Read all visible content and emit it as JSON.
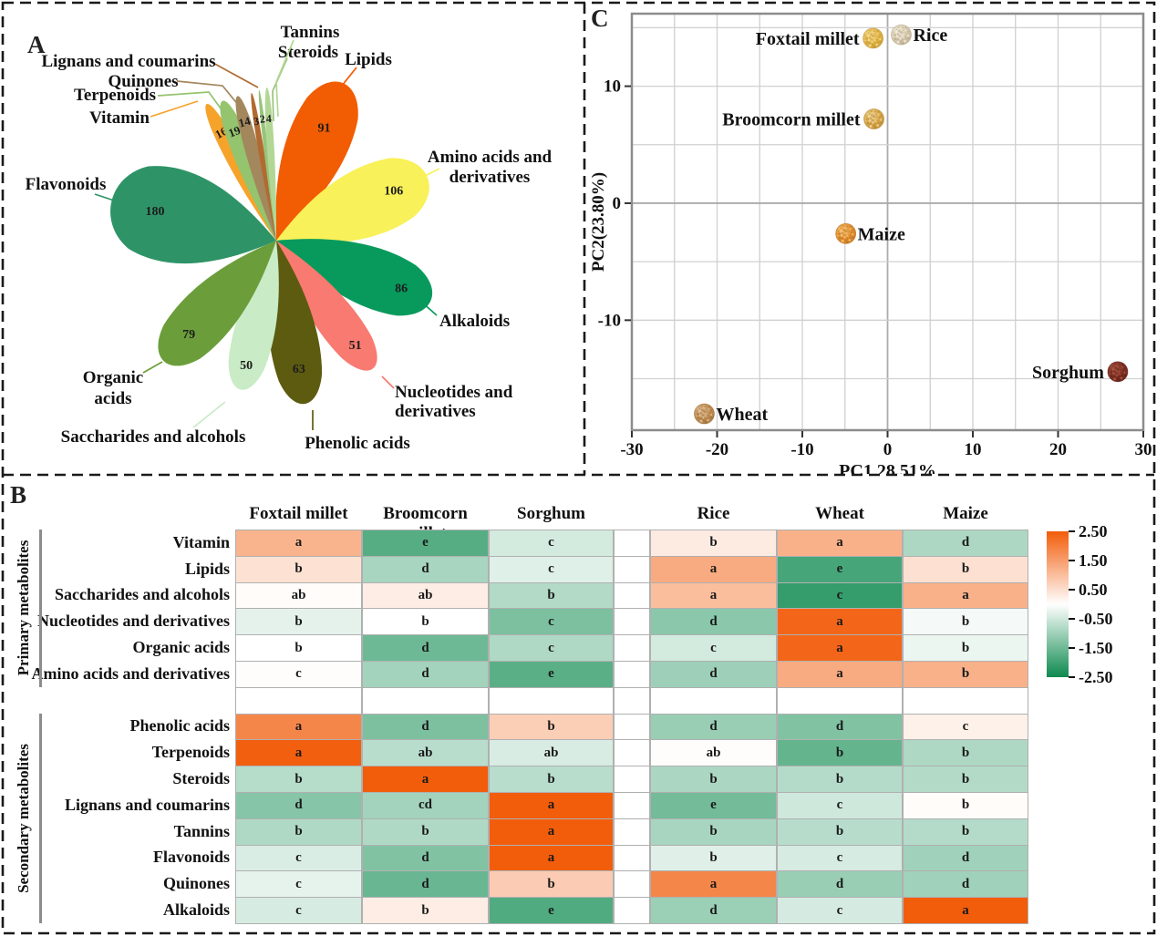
{
  "figure": {
    "panel_a_label": "A",
    "panel_b_label": "B",
    "panel_c_label": "C"
  },
  "chart_data": [
    {
      "type": "bar",
      "panel": "A",
      "title": "Metabolite class counts (flower/petal plot)",
      "petals": [
        {
          "name": "Lipids",
          "value": 91,
          "color": "#F25C02"
        },
        {
          "name": "Amino acids and derivatives",
          "value": 106,
          "color": "#F9F159"
        },
        {
          "name": "Alkaloids",
          "value": 86,
          "color": "#089A5D"
        },
        {
          "name": "Nucleotides and derivatives",
          "value": 51,
          "color": "#F87A70"
        },
        {
          "name": "Phenolic acids",
          "value": 63,
          "color": "#5D5B10"
        },
        {
          "name": "Saccharides and alcohols",
          "value": 50,
          "color": "#C9EBC6"
        },
        {
          "name": "Organic acids",
          "value": 79,
          "color": "#6B9E3B"
        },
        {
          "name": "Flavonoids",
          "value": 180,
          "color": "#2E9467"
        },
        {
          "name": "Vitamin",
          "value": 16,
          "color": "#F6A32B"
        },
        {
          "name": "Terpenoids",
          "value": 19,
          "color": "#94C46E"
        },
        {
          "name": "Quinones",
          "value": 14,
          "color": "#A3875D"
        },
        {
          "name": "Lignans and coumarins",
          "value": 3,
          "color": "#B16A30"
        },
        {
          "name": "Steroids",
          "value": 2,
          "color": "#97C47A"
        },
        {
          "name": "Tannins",
          "value": 4,
          "color": "#B2D795"
        }
      ]
    },
    {
      "type": "scatter",
      "panel": "C",
      "xlabel": "PC1 28.51%",
      "ylabel": "PC2(23.80%)",
      "xlim": [
        -30,
        30
      ],
      "ylim": [
        -19.4,
        16.2
      ],
      "xticks": [
        -30,
        -20,
        -10,
        0,
        10,
        20,
        30
      ],
      "yticks": [
        -10,
        0,
        10
      ],
      "grid_step": 5,
      "points": [
        {
          "name": "Foxtail millet",
          "x": -1.7,
          "y": 14.1,
          "label_side": "left",
          "color": {
            "base": "#E3B64B",
            "dark": "#B98F2A",
            "light": "#F4DA8C"
          }
        },
        {
          "name": "Rice",
          "x": 1.6,
          "y": 14.4,
          "label_side": "right",
          "color": {
            "base": "#D9CDB2",
            "dark": "#AE9C7C",
            "light": "#F0EADA"
          }
        },
        {
          "name": "Broomcorn millet",
          "x": -1.6,
          "y": 7.2,
          "label_side": "left",
          "color": {
            "base": "#D9A94C",
            "dark": "#AE7E28",
            "light": "#F0D598"
          }
        },
        {
          "name": "Maize",
          "x": -4.9,
          "y": -2.6,
          "label_side": "right",
          "color": {
            "base": "#E39134",
            "dark": "#B56A18",
            "light": "#F6C473"
          }
        },
        {
          "name": "Sorghum",
          "x": 27.0,
          "y": -14.4,
          "label_side": "left",
          "color": {
            "base": "#823125",
            "dark": "#571D12",
            "light": "#A85640"
          }
        },
        {
          "name": "Wheat",
          "x": -21.5,
          "y": -18.0,
          "label_side": "right",
          "color": {
            "base": "#C29059",
            "dark": "#96672F",
            "light": "#E0BE93"
          }
        }
      ]
    },
    {
      "type": "heatmap",
      "panel": "B",
      "columns": [
        "Foxtail millet",
        "Broomcorn millet",
        "Sorghum",
        "Rice",
        "Wheat",
        "Maize"
      ],
      "groups": [
        {
          "name": "Primary metabolites",
          "rows": [
            0,
            5
          ]
        },
        {
          "name": "Secondary metabolites",
          "rows": [
            6,
            13
          ]
        }
      ],
      "rows": [
        {
          "name": "Vitamin",
          "cells": [
            {
              "l": "a",
              "v": 1.15
            },
            {
              "l": "e",
              "v": -1.75
            },
            {
              "l": "c",
              "v": -0.45
            },
            {
              "l": "b",
              "v": 0.3
            },
            {
              "l": "a",
              "v": 1.2
            },
            {
              "l": "d",
              "v": -0.85
            }
          ]
        },
        {
          "name": "Lipids",
          "cells": [
            {
              "l": "b",
              "v": 0.45
            },
            {
              "l": "d",
              "v": -0.9
            },
            {
              "l": "c",
              "v": -0.33
            },
            {
              "l": "a",
              "v": 1.3
            },
            {
              "l": "e",
              "v": -1.9
            },
            {
              "l": "b",
              "v": 0.47
            }
          ]
        },
        {
          "name": "Saccharides and alcohols",
          "cells": [
            {
              "l": "ab",
              "v": 0.05
            },
            {
              "l": "ab",
              "v": 0.27
            },
            {
              "l": "b",
              "v": -0.8
            },
            {
              "l": "a",
              "v": 1.0
            },
            {
              "l": "c",
              "v": -2.1
            },
            {
              "l": "a",
              "v": 1.2
            }
          ]
        },
        {
          "name": "Nucleotides and derivatives",
          "cells": [
            {
              "l": "b",
              "v": -0.28
            },
            {
              "l": "b",
              "v": 0.0
            },
            {
              "l": "c",
              "v": -1.35
            },
            {
              "l": "d",
              "v": -1.2
            },
            {
              "l": "a",
              "v": 2.35
            },
            {
              "l": "b",
              "v": -0.1
            }
          ]
        },
        {
          "name": "Organic acids",
          "cells": [
            {
              "l": "b",
              "v": 0.0
            },
            {
              "l": "d",
              "v": -1.5
            },
            {
              "l": "c",
              "v": -0.83
            },
            {
              "l": "c",
              "v": -0.45
            },
            {
              "l": "a",
              "v": 2.35
            },
            {
              "l": "b",
              "v": -0.2
            }
          ]
        },
        {
          "name": "Amino acids and derivatives",
          "cells": [
            {
              "l": "c",
              "v": 0.03
            },
            {
              "l": "d",
              "v": -0.95
            },
            {
              "l": "e",
              "v": -1.7
            },
            {
              "l": "d",
              "v": -1.0
            },
            {
              "l": "a",
              "v": 1.3
            },
            {
              "l": "b",
              "v": 1.2
            }
          ]
        },
        {
          "name": "Phenolic acids",
          "cells": [
            {
              "l": "a",
              "v": 1.85
            },
            {
              "l": "d",
              "v": -1.35
            },
            {
              "l": "b",
              "v": 0.75
            },
            {
              "l": "d",
              "v": -1.05
            },
            {
              "l": "d",
              "v": -1.3
            },
            {
              "l": "c",
              "v": 0.22
            }
          ]
        },
        {
          "name": "Terpenoids",
          "cells": [
            {
              "l": "a",
              "v": 2.45
            },
            {
              "l": "ab",
              "v": -0.72
            },
            {
              "l": "ab",
              "v": -0.4
            },
            {
              "l": "ab",
              "v": 0.03
            },
            {
              "l": "b",
              "v": -1.6
            },
            {
              "l": "b",
              "v": -0.84
            }
          ]
        },
        {
          "name": "Steroids",
          "cells": [
            {
              "l": "b",
              "v": -0.75
            },
            {
              "l": "a",
              "v": 2.48
            },
            {
              "l": "b",
              "v": -0.73
            },
            {
              "l": "b",
              "v": -0.87
            },
            {
              "l": "b",
              "v": -0.77
            },
            {
              "l": "b",
              "v": -0.8
            }
          ]
        },
        {
          "name": "Lignans and coumarins",
          "cells": [
            {
              "l": "d",
              "v": -1.25
            },
            {
              "l": "cd",
              "v": -0.95
            },
            {
              "l": "a",
              "v": 2.48
            },
            {
              "l": "e",
              "v": -1.45
            },
            {
              "l": "c",
              "v": -0.5
            },
            {
              "l": "b",
              "v": 0.05
            }
          ]
        },
        {
          "name": "Tannins",
          "cells": [
            {
              "l": "b",
              "v": -0.82
            },
            {
              "l": "b",
              "v": -0.82
            },
            {
              "l": "a",
              "v": 2.48
            },
            {
              "l": "b",
              "v": -0.9
            },
            {
              "l": "b",
              "v": -0.74
            },
            {
              "l": "b",
              "v": -0.77
            }
          ]
        },
        {
          "name": "Flavonoids",
          "cells": [
            {
              "l": "c",
              "v": -0.38
            },
            {
              "l": "d",
              "v": -1.3
            },
            {
              "l": "a",
              "v": 2.48
            },
            {
              "l": "b",
              "v": -0.32
            },
            {
              "l": "c",
              "v": -0.42
            },
            {
              "l": "d",
              "v": -0.98
            }
          ]
        },
        {
          "name": "Quinones",
          "cells": [
            {
              "l": "c",
              "v": -0.26
            },
            {
              "l": "d",
              "v": -1.55
            },
            {
              "l": "b",
              "v": 0.78
            },
            {
              "l": "a",
              "v": 1.85
            },
            {
              "l": "d",
              "v": -1.05
            },
            {
              "l": "d",
              "v": -0.98
            }
          ]
        },
        {
          "name": "Alkaloids",
          "cells": [
            {
              "l": "c",
              "v": -0.42
            },
            {
              "l": "b",
              "v": 0.28
            },
            {
              "l": "e",
              "v": -1.8
            },
            {
              "l": "d",
              "v": -1.03
            },
            {
              "l": "c",
              "v": -0.43
            },
            {
              "l": "a",
              "v": 2.48
            }
          ]
        }
      ],
      "colorbar": {
        "ticks": [
          "2.50",
          "1.50",
          "0.50",
          "-0.50",
          "-1.50",
          "-2.50"
        ],
        "max_value": 2.5,
        "min_value": -2.5,
        "max_color": "#F25C0A",
        "mid_color": "#FFFFFF",
        "min_color": "#0D8A4F"
      }
    }
  ]
}
